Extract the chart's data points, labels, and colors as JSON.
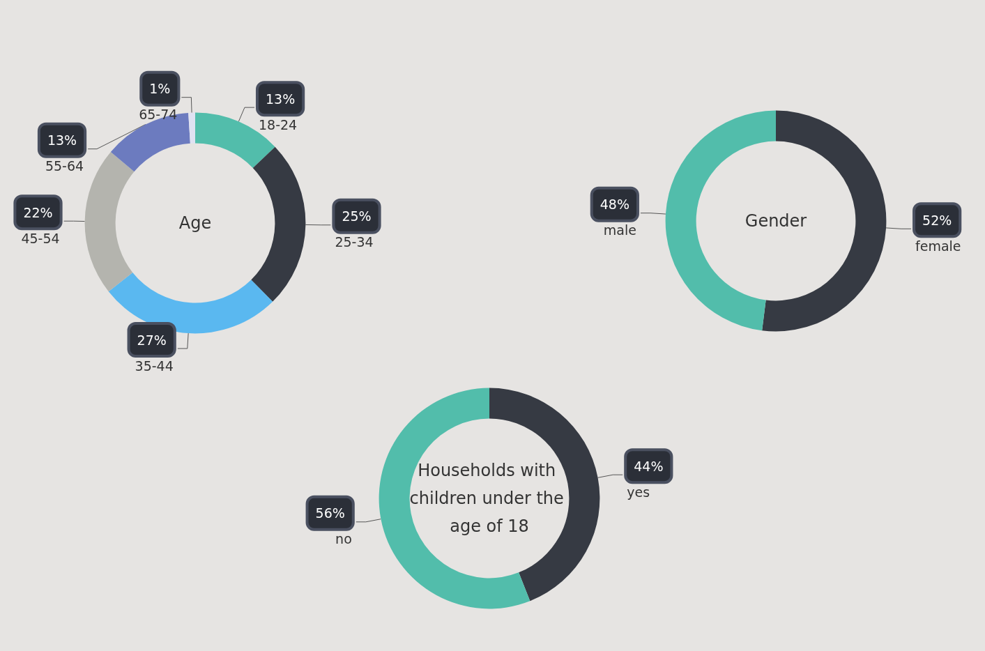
{
  "chart_data": [
    {
      "type": "donut",
      "title": "Age",
      "categories": [
        "18-24",
        "25-34",
        "35-44",
        "45-54",
        "55-64",
        "65-74"
      ],
      "values": [
        13,
        25,
        27,
        22,
        13,
        1
      ],
      "value_labels": [
        "13%",
        "25%",
        "27%",
        "22%",
        "13%",
        "1%"
      ],
      "colors": [
        "#52bdab",
        "#363a43",
        "#5ab8f0",
        "#b4b4ae",
        "#6c7bbf",
        "#dfe2f2"
      ]
    },
    {
      "type": "donut",
      "title": "Gender",
      "categories": [
        "female",
        "male"
      ],
      "values": [
        52,
        48
      ],
      "value_labels": [
        "52%",
        "48%"
      ],
      "colors": [
        "#363a43",
        "#52bdab"
      ]
    },
    {
      "type": "donut",
      "title": "Households with children under the age of 18",
      "categories": [
        "yes",
        "no"
      ],
      "values": [
        44,
        56
      ],
      "value_labels": [
        "44%",
        "56%"
      ],
      "colors": [
        "#363a43",
        "#52bdab"
      ]
    }
  ]
}
